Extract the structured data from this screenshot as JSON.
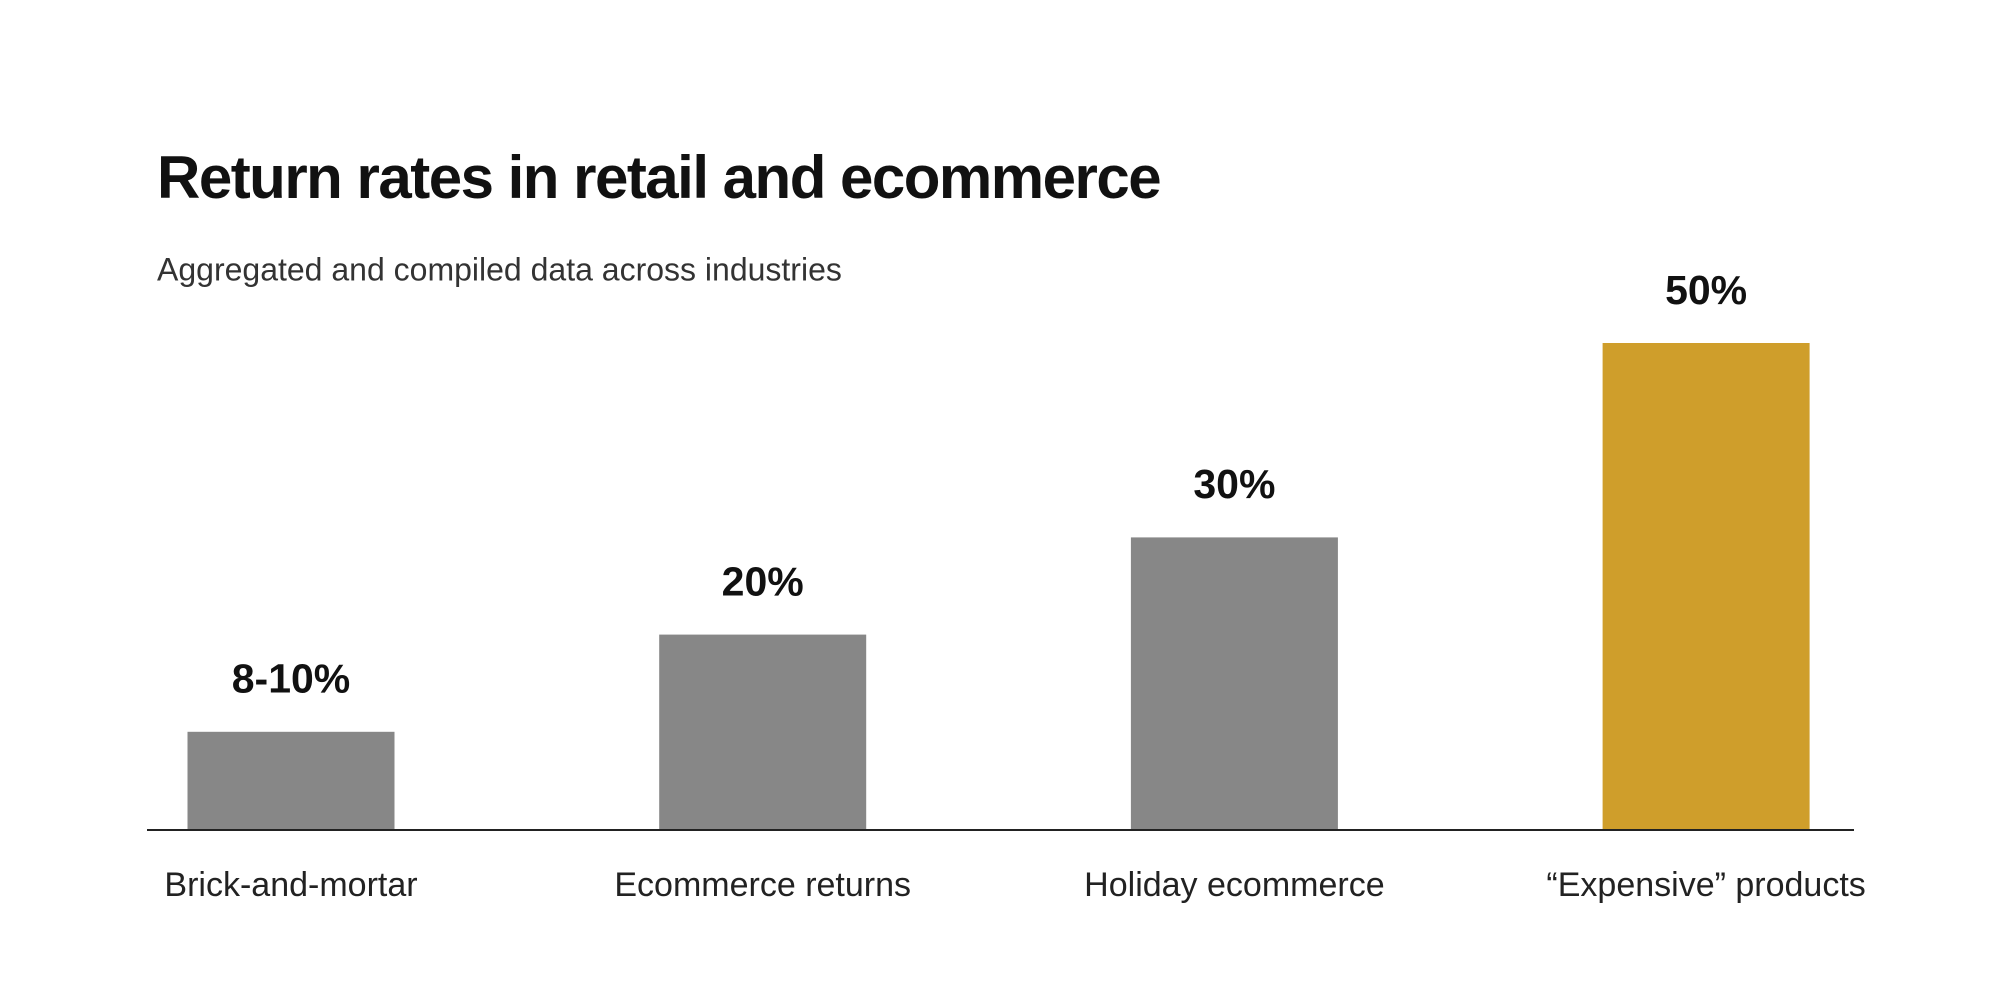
{
  "chart_data": {
    "type": "bar",
    "title": "Return rates in retail and ecommerce",
    "subtitle": "Aggregated and compiled data across industries",
    "categories": [
      "Brick-and-mortar",
      "Ecommerce returns",
      "Holiday ecommerce",
      "“Expensive” products"
    ],
    "values": [
      10,
      20,
      30,
      50
    ],
    "value_labels": [
      "8-10%",
      "20%",
      "30%",
      "50%"
    ],
    "colors": [
      "#878787",
      "#878787",
      "#878787",
      "#cf9e2b"
    ]
  }
}
